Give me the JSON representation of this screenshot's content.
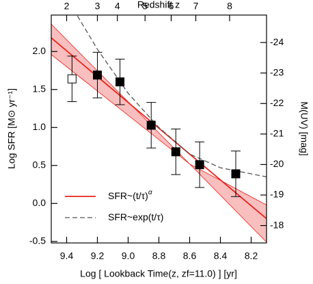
{
  "chart_data": {
    "type": "scatter",
    "xlabel": "Log [ Lookback Time(z, zf=11.0) ] [yr]",
    "ylabel": "Log SFR [M⊙ yr⁻¹]",
    "y2label": "M(UV) [mag]",
    "x2label": "Redshift z",
    "xlim": [
      9.5,
      8.1
    ],
    "xticks": [
      9.4,
      9.2,
      {
        "value": 9.0,
        "label": "9.0"
      },
      8.8,
      8.6,
      8.4,
      8.2
    ],
    "ylim": [
      -0.52,
      2.48
    ],
    "yticks": [
      -0.5,
      {
        "value": 0,
        "label": "0.0"
      },
      0.5,
      {
        "value": 1,
        "label": "1.0"
      },
      1.5,
      {
        "value": 2,
        "label": "2.0"
      }
    ],
    "y2lim": [
      -17.43,
      -24.9
    ],
    "y2ticks": [
      -18,
      -19,
      -20,
      -21,
      -22,
      -23,
      -24
    ],
    "x2ticks": [
      2,
      3,
      4,
      5,
      6,
      7,
      8
    ],
    "x2ticks_at_x": [
      9.4,
      9.2,
      9.07,
      8.89,
      8.72,
      8.56,
      8.34
    ],
    "points": {
      "x": [
        9.365,
        9.2,
        9.053,
        8.85,
        8.69,
        8.535,
        8.3
      ],
      "values": [
        1.64,
        1.69,
        1.6,
        1.03,
        0.68,
        0.51,
        0.39
      ],
      "errors": [
        0.3,
        0.3,
        0.3,
        0.3,
        0.3,
        0.3,
        0.3
      ],
      "markers": [
        "open",
        "filled",
        "filled",
        "filled",
        "filled",
        "filled",
        "filled"
      ],
      "color": "#000000"
    },
    "band": {
      "color": "#f7a8a8",
      "x": [
        9.5,
        8.6,
        8.1
      ],
      "upper": [
        2.36,
        0.52,
        -0.02
      ],
      "lower": [
        1.96,
        0.52,
        -0.51
      ]
    },
    "series": [
      {
        "name": "SFR~(t/τ)",
        "name_superscript": "α",
        "color": "#e8231c",
        "style": "solid",
        "x": [
          9.5,
          8.1
        ],
        "values": [
          2.18,
          -0.2
        ]
      },
      {
        "name": "SFR~exp(t/τ)",
        "color": "#555555",
        "style": "dashed",
        "x": [
          9.33,
          9.2,
          9.0,
          8.8,
          8.6,
          8.4,
          8.2,
          8.1
        ],
        "values": [
          2.47,
          2.03,
          1.45,
          1.0,
          0.65,
          0.47,
          0.39,
          0.35
        ]
      }
    ]
  }
}
